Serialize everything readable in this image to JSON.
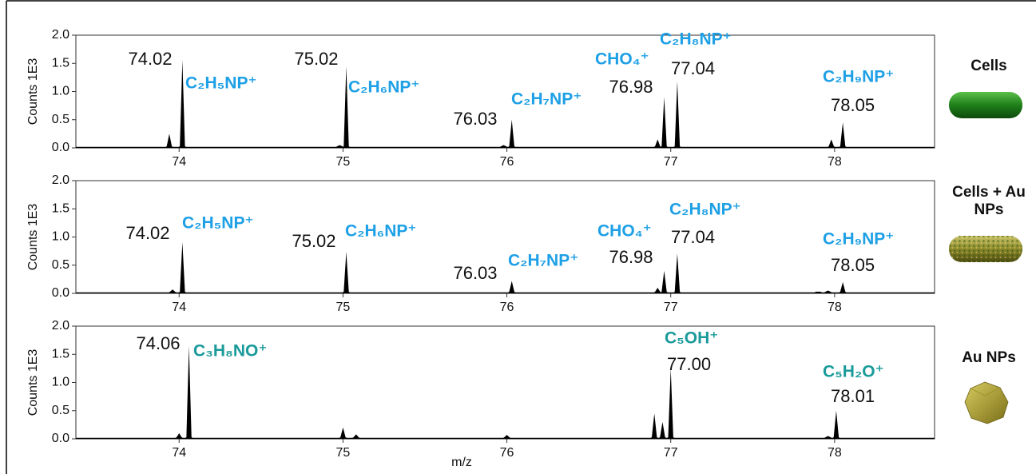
{
  "chart_data": [
    {
      "type": "spectrum",
      "ylabel": "Counts 1E3",
      "sample": "Cells",
      "annotation_color": "#1ea0e6",
      "xlim": [
        73.37,
        78.61
      ],
      "xticks": [
        74,
        75,
        76,
        77,
        78
      ],
      "ylim": [
        0,
        2
      ],
      "yticks": [
        {
          "value": 0,
          "label": "0.0"
        },
        {
          "value": 0.5,
          "label": "0.5"
        },
        {
          "value": 1,
          "label": "1.0"
        },
        {
          "value": 1.5,
          "label": "1.5"
        },
        {
          "value": 2,
          "label": "2.0"
        }
      ],
      "x": [
        73.94,
        74.02,
        74.98,
        75.02,
        75.98,
        76.03,
        76.92,
        76.96,
        77.04,
        77.98,
        78.05
      ],
      "values": [
        0.25,
        1.56,
        0.05,
        1.45,
        0.05,
        0.5,
        0.15,
        0.9,
        1.18,
        0.15,
        0.45
      ],
      "annotations": [
        {
          "mass": "74.02",
          "formula": "C₂H₅NP⁺"
        },
        {
          "mass": "75.02",
          "formula": "C₂H₆NP⁺"
        },
        {
          "mass": "76.03",
          "formula": "C₂H₇NP⁺"
        },
        {
          "mass": "76.98",
          "formula": "CHO₄⁺"
        },
        {
          "mass": "77.04",
          "formula": "C₂H₈NP⁺"
        },
        {
          "mass": "78.05",
          "formula": "C₂H₉NP⁺"
        }
      ]
    },
    {
      "type": "spectrum",
      "ylabel": "Counts 1E3",
      "sample": "Cells + Au NPs",
      "annotation_color": "#1ea0e6",
      "xlim": [
        73.37,
        78.61
      ],
      "xticks": [
        74,
        75,
        76,
        77,
        78
      ],
      "ylim": [
        0,
        2
      ],
      "yticks": [
        {
          "value": 0,
          "label": "0.0"
        },
        {
          "value": 0.5,
          "label": "0.5"
        },
        {
          "value": 1,
          "label": "1.0"
        },
        {
          "value": 1.5,
          "label": "1.5"
        },
        {
          "value": 2,
          "label": "2.0"
        }
      ],
      "x": [
        73.96,
        74.02,
        75.02,
        76.03,
        76.92,
        76.96,
        77.04,
        77.9,
        77.96,
        78.05
      ],
      "values": [
        0.07,
        0.91,
        0.74,
        0.22,
        0.1,
        0.4,
        0.71,
        0.03,
        0.05,
        0.2
      ],
      "annotations": [
        {
          "mass": "74.02",
          "formula": "C₂H₅NP⁺"
        },
        {
          "mass": "75.02",
          "formula": "C₂H₆NP⁺"
        },
        {
          "mass": "76.03",
          "formula": "C₂H₇NP⁺"
        },
        {
          "mass": "76.98",
          "formula": "CHO₄⁺"
        },
        {
          "mass": "77.04",
          "formula": "C₂H₈NP⁺"
        },
        {
          "mass": "78.05",
          "formula": "C₂H₉NP⁺"
        }
      ]
    },
    {
      "type": "spectrum",
      "ylabel": "Counts 1E3",
      "xlabel": "m/z",
      "sample": "Au NPs",
      "annotation_color": "#1a9a9a",
      "xlim": [
        73.37,
        78.61
      ],
      "xticks": [
        74,
        75,
        76,
        77,
        78
      ],
      "ylim": [
        0,
        2
      ],
      "yticks": [
        {
          "value": 0,
          "label": "0.0"
        },
        {
          "value": 0.5,
          "label": "0.5"
        },
        {
          "value": 1,
          "label": "1.0"
        },
        {
          "value": 1.5,
          "label": "1.5"
        },
        {
          "value": 2,
          "label": "2.0"
        }
      ],
      "x": [
        74.0,
        74.06,
        75.0,
        75.08,
        76.0,
        76.9,
        76.95,
        77.0,
        77.96,
        78.01
      ],
      "values": [
        0.1,
        1.65,
        0.2,
        0.08,
        0.07,
        0.45,
        0.3,
        1.25,
        0.05,
        0.5
      ],
      "annotations": [
        {
          "mass": "74.06",
          "formula": "C₃H₈NO⁺"
        },
        {
          "mass": "77.00",
          "formula": "C₅OH⁺"
        },
        {
          "mass": "78.01",
          "formula": "C₅H₂O⁺"
        }
      ]
    }
  ]
}
